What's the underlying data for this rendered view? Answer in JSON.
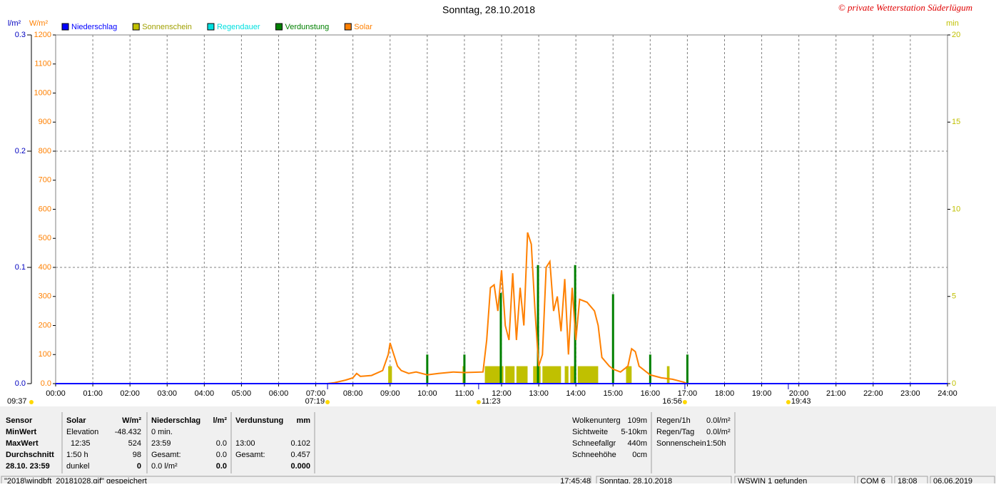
{
  "header": {
    "title": "Sonntag, 28.10.2018",
    "copyright": "© private Wetterstation Süderlügum"
  },
  "chart_data": {
    "type": "weather-day",
    "ylabel": "l/m²",
    "ylim": [
      0,
      0.3
    ],
    "yticks": [
      {
        "value": 0,
        "label": "0.0"
      },
      0.1,
      0.2,
      0.3
    ],
    "y_solar_label": "W/m²",
    "y_solar_lim": [
      0,
      1200
    ],
    "y_solar_ticks": [
      {
        "value": 0,
        "label": "0.0"
      },
      100,
      200,
      300,
      400,
      500,
      600,
      700,
      800,
      900,
      1000,
      1100,
      1200
    ],
    "y2label": "min",
    "y2lim": [
      0,
      20
    ],
    "y2ticks": [
      0,
      5,
      10,
      15,
      20
    ],
    "xlim": [
      0,
      24
    ],
    "xticks": [
      {
        "value": 0,
        "label": "00:00"
      },
      {
        "value": 1,
        "label": "01:00"
      },
      {
        "value": 2,
        "label": "02:00"
      },
      {
        "value": 3,
        "label": "03:00"
      },
      {
        "value": 4,
        "label": "04:00"
      },
      {
        "value": 5,
        "label": "05:00"
      },
      {
        "value": 6,
        "label": "06:00"
      },
      {
        "value": 7,
        "label": "07:00"
      },
      {
        "value": 8,
        "label": "08:00"
      },
      {
        "value": 9,
        "label": "09:00"
      },
      {
        "value": 10,
        "label": "10:00"
      },
      {
        "value": 11,
        "label": "11:00"
      },
      {
        "value": 12,
        "label": "12:00"
      },
      {
        "value": 13,
        "label": "13:00"
      },
      {
        "value": 14,
        "label": "14:00"
      },
      {
        "value": 15,
        "label": "15:00"
      },
      {
        "value": 16,
        "label": "16:00"
      },
      {
        "value": 17,
        "label": "17:00"
      },
      {
        "value": 18,
        "label": "18:00"
      },
      {
        "value": 19,
        "label": "19:00"
      },
      {
        "value": 20,
        "label": "20:00"
      },
      {
        "value": 21,
        "label": "21:00"
      },
      {
        "value": 22,
        "label": "22:00"
      },
      {
        "value": 23,
        "label": "23:00"
      },
      {
        "value": 24,
        "label": "24:00"
      }
    ],
    "grid": true,
    "series": [
      {
        "name": "Niederschlag",
        "color": "#0000ff",
        "kind": "line",
        "axis": "y",
        "x": [
          0,
          24
        ],
        "values": [
          0,
          0
        ]
      },
      {
        "name": "Sonnenschein",
        "color": "#c0c000",
        "kind": "span-bars",
        "axis": "y2",
        "x_start": [
          8.95,
          10.95,
          11.55,
          12.1,
          12.4,
          12.85,
          13.1,
          13.7,
          13.85,
          14.05,
          15.35,
          16.45
        ],
        "x_end": [
          9.05,
          11.02,
          12.05,
          12.35,
          12.7,
          13.05,
          13.6,
          13.8,
          14.0,
          14.6,
          15.5,
          16.52
        ],
        "values": [
          1,
          1,
          1,
          1,
          1,
          1,
          1,
          1,
          1,
          1,
          1,
          1
        ]
      },
      {
        "name": "Regendauer",
        "color": "#00e0e0",
        "kind": "bars",
        "axis": "y2",
        "x": [],
        "values": []
      },
      {
        "name": "Verdunstung",
        "color": "#008000",
        "kind": "bars",
        "axis": "y",
        "x": [
          10,
          11,
          11.98,
          12.98,
          13.98,
          15,
          16,
          17
        ],
        "values": [
          0.025,
          0.025,
          0.078,
          0.102,
          0.102,
          0.077,
          0.025,
          0.025
        ]
      },
      {
        "name": "Solar",
        "color": "#ff8000",
        "kind": "line",
        "axis": "y_solar",
        "x": [
          7.3,
          7.5,
          7.8,
          8.0,
          8.1,
          8.2,
          8.5,
          8.8,
          8.95,
          9.0,
          9.1,
          9.2,
          9.3,
          9.5,
          9.7,
          10.0,
          10.3,
          10.7,
          11.0,
          11.5,
          11.6,
          11.7,
          11.8,
          11.9,
          12.0,
          12.1,
          12.2,
          12.3,
          12.4,
          12.5,
          12.6,
          12.7,
          12.8,
          12.9,
          13.0,
          13.1,
          13.2,
          13.3,
          13.4,
          13.5,
          13.6,
          13.7,
          13.8,
          13.9,
          14.0,
          14.1,
          14.3,
          14.5,
          14.6,
          14.7,
          14.9,
          15.0,
          15.2,
          15.4,
          15.5,
          15.6,
          15.7,
          16.0,
          16.3,
          16.6,
          16.9,
          17.0
        ],
        "values": [
          0,
          3,
          12,
          20,
          35,
          25,
          28,
          45,
          100,
          140,
          100,
          60,
          45,
          35,
          40,
          30,
          35,
          40,
          38,
          40,
          150,
          330,
          340,
          250,
          390,
          200,
          150,
          380,
          150,
          330,
          200,
          520,
          480,
          250,
          60,
          100,
          400,
          420,
          250,
          300,
          180,
          360,
          100,
          330,
          150,
          290,
          280,
          250,
          200,
          90,
          60,
          50,
          40,
          60,
          120,
          110,
          60,
          30,
          20,
          15,
          5,
          0
        ]
      }
    ],
    "corner_note": "09:37",
    "events": [
      {
        "time": 7.317,
        "label": "07:19"
      },
      {
        "time": 11.383,
        "label": "11:23"
      },
      {
        "time": 16.933,
        "label": "16:56"
      },
      {
        "time": 19.717,
        "label": "19:43"
      }
    ]
  },
  "stats": [
    {
      "header": [
        "Sensor"
      ],
      "rows": [
        [
          "MinWert"
        ],
        [
          "MaxWert"
        ],
        [
          "Durchschnitt"
        ],
        [
          "28.10. 23:59"
        ]
      ]
    },
    {
      "header": [
        "Solar",
        "W/m²"
      ],
      "rows": [
        [
          "Elevation",
          "-48.432"
        ],
        [
          "12:35",
          "524"
        ],
        [
          "1:50 h",
          "98"
        ],
        [
          "dunkel",
          "0"
        ]
      ]
    },
    {
      "header": [
        "Niederschlag",
        "l/m²"
      ],
      "rows": [
        [
          "0 min."
        ],
        [
          "23:59",
          "0.0"
        ],
        [
          "Gesamt:",
          "0.0"
        ],
        [
          "0.0 l/m²",
          "0.0"
        ]
      ]
    },
    {
      "header": [
        "Verdunstung",
        "mm"
      ],
      "rows": [
        [],
        [
          "13:00",
          "0.102"
        ],
        [
          "Gesamt:",
          "0.457"
        ],
        [
          "0.000"
        ]
      ]
    }
  ],
  "conditions": [
    [
      "Wolkenunterg",
      "109m"
    ],
    [
      "Sichtweite",
      "5-10km"
    ],
    [
      "Schneefallgr",
      "440m"
    ],
    [
      "Schneehöhe",
      "0cm"
    ]
  ],
  "rain": [
    [
      "Regen/1h",
      "0.0l/m²"
    ],
    [
      "Regen/Tag",
      "0.0l/m²"
    ],
    [
      "Sonnenschein",
      "1:50h"
    ]
  ],
  "status_bar": [
    "\"2018\\windbft_20181028.gif\" gespeichert",
    "17:45:48",
    "Sonntag, 28.10.2018",
    "WSWIN 1 gefunden",
    "COM 6",
    "18:08",
    "06.06.2019"
  ]
}
